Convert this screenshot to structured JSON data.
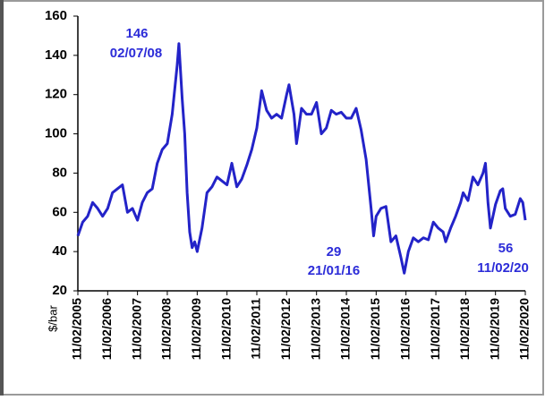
{
  "chart_data": {
    "type": "line",
    "y_label": "$/bar",
    "x": [
      "2005-02-11",
      "2005-04-11",
      "2005-06-11",
      "2005-08-11",
      "2005-10-11",
      "2005-12-11",
      "2006-02-11",
      "2006-04-11",
      "2006-06-11",
      "2006-08-11",
      "2006-10-11",
      "2006-12-11",
      "2007-02-11",
      "2007-04-11",
      "2007-06-11",
      "2007-08-11",
      "2007-10-11",
      "2007-12-11",
      "2008-02-11",
      "2008-04-11",
      "2008-06-11",
      "2008-07-02",
      "2008-08-11",
      "2008-09-11",
      "2008-10-11",
      "2008-11-11",
      "2008-12-11",
      "2009-01-11",
      "2009-02-11",
      "2009-04-11",
      "2009-06-11",
      "2009-08-11",
      "2009-10-11",
      "2009-12-11",
      "2010-02-11",
      "2010-04-11",
      "2010-06-11",
      "2010-08-11",
      "2010-10-11",
      "2010-12-11",
      "2011-02-11",
      "2011-04-11",
      "2011-06-11",
      "2011-08-11",
      "2011-10-11",
      "2011-12-11",
      "2012-02-11",
      "2012-03-11",
      "2012-05-11",
      "2012-06-11",
      "2012-08-11",
      "2012-10-11",
      "2012-12-11",
      "2013-02-11",
      "2013-04-11",
      "2013-06-11",
      "2013-08-11",
      "2013-10-11",
      "2013-12-11",
      "2014-02-11",
      "2014-04-11",
      "2014-06-11",
      "2014-08-11",
      "2014-10-11",
      "2014-12-11",
      "2015-01-11",
      "2015-02-11",
      "2015-04-11",
      "2015-06-11",
      "2015-08-11",
      "2015-10-11",
      "2015-12-11",
      "2016-01-21",
      "2016-03-11",
      "2016-05-11",
      "2016-07-11",
      "2016-09-11",
      "2016-11-11",
      "2017-01-11",
      "2017-03-11",
      "2017-05-11",
      "2017-06-11",
      "2017-08-11",
      "2017-10-11",
      "2017-12-11",
      "2018-01-11",
      "2018-03-11",
      "2018-05-11",
      "2018-07-11",
      "2018-09-11",
      "2018-10-11",
      "2018-11-11",
      "2018-12-11",
      "2019-02-11",
      "2019-04-11",
      "2019-05-11",
      "2019-06-11",
      "2019-08-11",
      "2019-10-11",
      "2019-12-11",
      "2020-01-11",
      "2020-02-11"
    ],
    "series": [
      {
        "color": "#2323c8",
        "values": [
          48,
          55,
          58,
          65,
          62,
          58,
          62,
          70,
          72,
          74,
          60,
          62,
          56,
          65,
          70,
          72,
          85,
          92,
          95,
          110,
          135,
          146,
          118,
          100,
          70,
          50,
          42,
          45,
          40,
          52,
          70,
          73,
          78,
          76,
          74,
          85,
          73,
          77,
          84,
          92,
          103,
          122,
          112,
          108,
          110,
          108,
          120,
          125,
          110,
          95,
          113,
          110,
          110,
          116,
          100,
          103,
          112,
          110,
          111,
          108,
          108,
          113,
          102,
          87,
          62,
          48,
          58,
          62,
          63,
          45,
          48,
          37,
          29,
          40,
          47,
          45,
          47,
          46,
          55,
          52,
          50,
          45,
          52,
          58,
          65,
          70,
          66,
          78,
          74,
          80,
          85,
          65,
          52,
          64,
          71,
          72,
          62,
          58,
          59,
          67,
          65,
          56
        ]
      }
    ],
    "xlim": [
      "2005-02-11",
      "2020-02-11"
    ],
    "xticks": [
      {
        "value": "2005-02-11",
        "label": "11/02/2005"
      },
      {
        "value": "2006-02-11",
        "label": "11/02/2006"
      },
      {
        "value": "2007-02-11",
        "label": "11/02/2007"
      },
      {
        "value": "2008-02-11",
        "label": "11/02/2008"
      },
      {
        "value": "2009-02-11",
        "label": "11/02/2009"
      },
      {
        "value": "2010-02-11",
        "label": "11/02/2010"
      },
      {
        "value": "2011-02-11",
        "label": "11/02/2011"
      },
      {
        "value": "2012-02-11",
        "label": "11/02/2012"
      },
      {
        "value": "2013-02-11",
        "label": "11/02/2013"
      },
      {
        "value": "2014-02-11",
        "label": "11/02/2014"
      },
      {
        "value": "2015-02-11",
        "label": "11/02/2015"
      },
      {
        "value": "2016-02-11",
        "label": "11/02/2016"
      },
      {
        "value": "2017-02-11",
        "label": "11/02/2017"
      },
      {
        "value": "2018-02-11",
        "label": "11/02/2018"
      },
      {
        "value": "2019-02-11",
        "label": "11/02/2019"
      },
      {
        "value": "2020-02-11",
        "label": "11/02/2020"
      }
    ],
    "ylim": [
      20,
      160
    ],
    "yticks": [
      20,
      40,
      60,
      80,
      100,
      120,
      140,
      160
    ],
    "annotations": [
      {
        "value": 146,
        "label": "02/07/08"
      },
      {
        "value": 29,
        "label": "21/01/16"
      },
      {
        "value": 56,
        "label": "11/02/20"
      }
    ]
  }
}
